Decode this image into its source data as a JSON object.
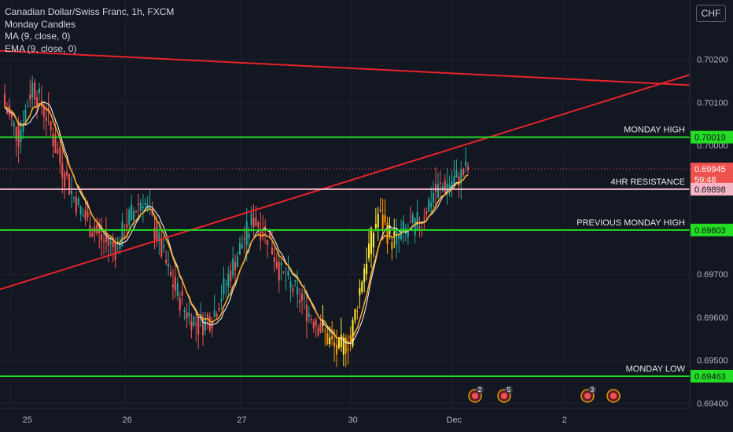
{
  "currency": "CHF",
  "legend": {
    "indicators": [
      "Monday Candles",
      "MA (9, close, 0)",
      "EMA (9, close, 0)"
    ]
  },
  "colors": {
    "background": "#131722",
    "up": "#26a69a",
    "down": "#ef5350",
    "monday_up": "#ffeb3b",
    "monday_down": "#ff9800",
    "ma": "#ffffff",
    "ema": "#f5a623",
    "trend": "#e8232a",
    "level": "#22dd22",
    "resistance": "#f6b6c6"
  },
  "event_badges": [
    {
      "date": "30",
      "count": "2"
    },
    {
      "date": "30",
      "count": "5"
    },
    {
      "date": "2",
      "count": "3"
    },
    {
      "date": "2",
      "count": ""
    }
  ],
  "chart_data": {
    "type": "candlestick",
    "title": "Canadian Dollar/Swiss Franc, 1h, FXCM",
    "ylim": [
      0.69388,
      0.70338
    ],
    "y_ticks": [
      "0.70200",
      "0.70100",
      "0.70000",
      "0.69700",
      "0.69600",
      "0.69500",
      "0.69400"
    ],
    "x_ticks": [
      "25",
      "26",
      "27",
      "30",
      "Dec",
      "2"
    ],
    "price_labels": [
      {
        "value": 0.70019,
        "text": "0.70019",
        "color": "#22dd22"
      },
      {
        "value": 0.69945,
        "text": "0.69945",
        "color": "#ef5350"
      },
      {
        "value": 0.69921,
        "text": "59:48",
        "color": "#ef5350"
      },
      {
        "value": 0.69898,
        "text": "0.69898",
        "color": "#f6b6c6"
      },
      {
        "value": 0.69803,
        "text": "0.69803",
        "color": "#22dd22"
      },
      {
        "value": 0.69463,
        "text": "0.69463",
        "color": "#22dd22"
      }
    ],
    "levels": [
      {
        "name": "MONDAY HIGH",
        "value": 0.70019,
        "color": "#22dd22"
      },
      {
        "name": "4HR RESISTANCE",
        "value": 0.69898,
        "color": "#f6b6c6"
      },
      {
        "name": "PREVIOUS MONDAY HIGH",
        "value": 0.69803,
        "color": "#22dd22"
      },
      {
        "name": "MONDAY LOW",
        "value": 0.69463,
        "color": "#22dd22"
      }
    ],
    "trendlines": [
      {
        "from": [
          0,
          0.7022
        ],
        "to": [
          75.5,
          0.7014
        ]
      },
      {
        "from": [
          0,
          0.69665
        ],
        "to": [
          75.5,
          0.70164
        ]
      }
    ],
    "pivots": [
      [
        0,
        0.7009
      ],
      [
        2,
        0.7002
      ],
      [
        4,
        0.7014
      ],
      [
        6,
        0.7007
      ],
      [
        8,
        0.6996
      ],
      [
        10,
        0.6988
      ],
      [
        12,
        0.6982
      ],
      [
        14,
        0.6978
      ],
      [
        16,
        0.6976
      ],
      [
        18,
        0.6983
      ],
      [
        20,
        0.6988
      ],
      [
        22,
        0.6979
      ],
      [
        24,
        0.6969
      ],
      [
        26,
        0.6962
      ],
      [
        28,
        0.6958
      ],
      [
        30,
        0.696
      ],
      [
        32,
        0.6968
      ],
      [
        34,
        0.6976
      ],
      [
        36,
        0.6983
      ],
      [
        38,
        0.6979
      ],
      [
        40,
        0.697
      ],
      [
        42,
        0.6966
      ],
      [
        44,
        0.6961
      ],
      [
        46,
        0.6957
      ],
      [
        48,
        0.6952
      ],
      [
        50,
        0.6955
      ],
      [
        52,
        0.6972
      ],
      [
        54,
        0.6984
      ],
      [
        56,
        0.6978
      ],
      [
        58,
        0.698
      ],
      [
        60,
        0.6982
      ],
      [
        62,
        0.6989
      ],
      [
        64,
        0.6991
      ],
      [
        66,
        0.6993
      ],
      [
        67,
        0.69945
      ]
    ],
    "monday_candle_range": [
      [
        38,
        48
      ]
    ],
    "x_tick_index": [
      1,
      19.7,
      38.4,
      56.5,
      73,
      91
    ]
  }
}
